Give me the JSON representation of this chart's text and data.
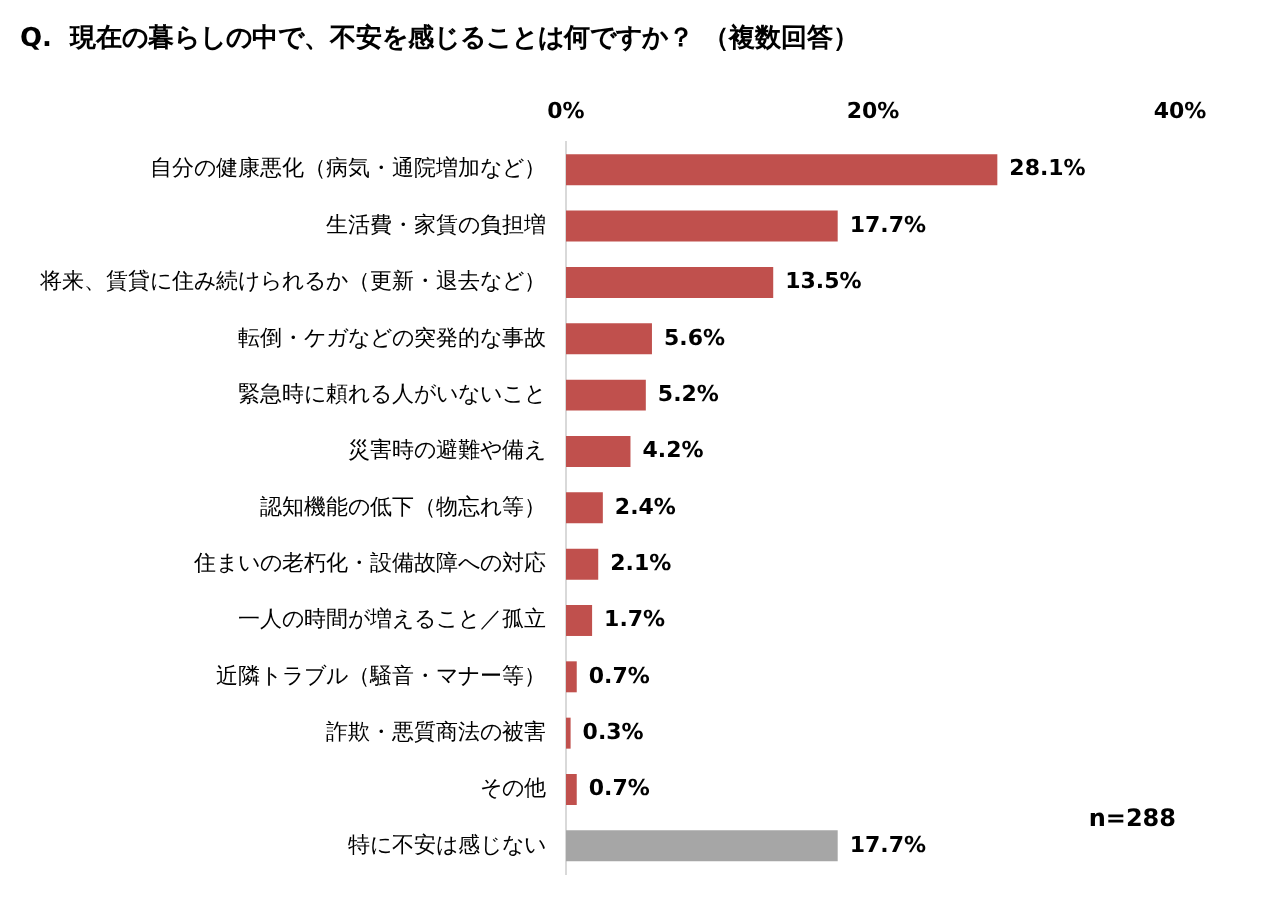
{
  "chart_data": {
    "type": "bar",
    "orientation": "horizontal",
    "title": "Q.  現在の暮らしの中で、不安を感じることは何ですか？ （複数回答）",
    "categories": [
      "自分の健康悪化（病気・通院増加など）",
      "生活費・家賃の負担増",
      "将来、賃貸に住み続けられるか（更新・退去など）",
      "転倒・ケガなどの突発的な事故",
      "緊急時に頼れる人がいないこと",
      "災害時の避難や備え",
      "認知機能の低下（物忘れ等）",
      "住まいの老朽化・設備故障への対応",
      "一人の時間が増えること／孤立",
      "近隣トラブル（騒音・マナー等）",
      "詐欺・悪質商法の被害",
      "その他",
      "特に不安は感じない"
    ],
    "values": [
      28.1,
      17.7,
      13.5,
      5.6,
      5.2,
      4.2,
      2.4,
      2.1,
      1.7,
      0.7,
      0.3,
      0.7,
      17.7
    ],
    "colors": [
      "#c0504d",
      "#c0504d",
      "#c0504d",
      "#c0504d",
      "#c0504d",
      "#c0504d",
      "#c0504d",
      "#c0504d",
      "#c0504d",
      "#c0504d",
      "#c0504d",
      "#c0504d",
      "#a6a6a6"
    ],
    "value_labels": [
      "28.1%",
      "17.7%",
      "13.5%",
      "5.6%",
      "5.2%",
      "4.2%",
      "2.4%",
      "2.1%",
      "1.7%",
      "0.7%",
      "0.3%",
      "0.7%",
      "17.7%"
    ],
    "xlim": [
      0,
      40
    ],
    "xticks": [
      {
        "value": 0,
        "label": "0%"
      },
      {
        "value": 20,
        "label": "20%"
      },
      {
        "value": 40,
        "label": "40%"
      }
    ],
    "grid": false,
    "legend": false,
    "annotations": [
      "n=288"
    ]
  }
}
